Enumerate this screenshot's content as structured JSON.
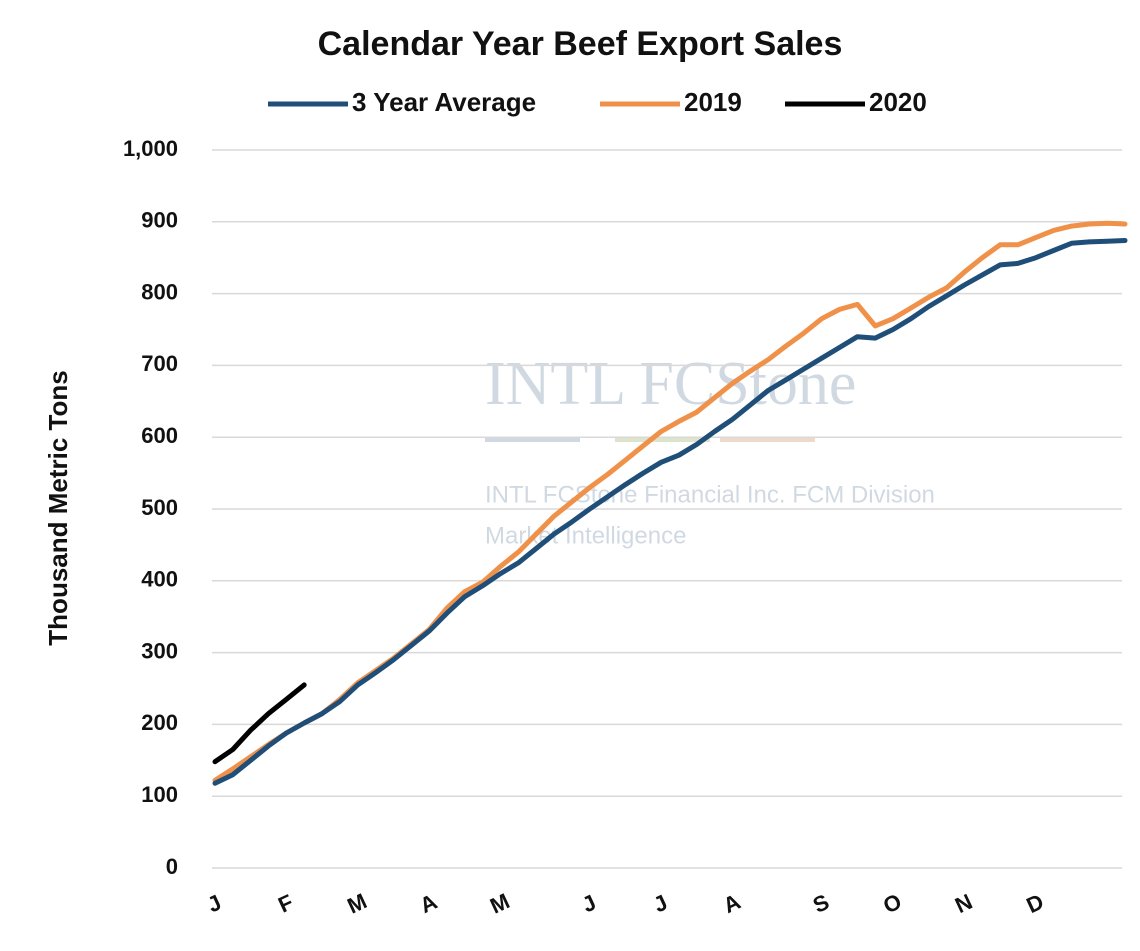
{
  "chart_data": {
    "type": "line",
    "title": "Calendar Year Beef Export Sales",
    "y_label": "Thousand Metric Tons",
    "watermark": [
      "INTL FCStone",
      "INTL FCStone Financial Inc. FCM Division",
      "Market Intelligence"
    ],
    "categories": [
      "J",
      null,
      null,
      null,
      "F",
      null,
      null,
      null,
      "M",
      null,
      null,
      null,
      "A",
      null,
      null,
      null,
      "M",
      null,
      null,
      null,
      null,
      "J",
      null,
      null,
      null,
      "J",
      null,
      null,
      null,
      "A",
      null,
      null,
      null,
      null,
      "S",
      null,
      null,
      null,
      "O",
      null,
      null,
      null,
      "N",
      null,
      null,
      null,
      "D",
      null,
      null,
      null,
      null,
      null
    ],
    "series": [
      {
        "name": "3 Year Average",
        "color": "#1f4e79",
        "values": [
          118,
          130,
          150,
          170,
          188,
          202,
          215,
          232,
          255,
          272,
          290,
          310,
          330,
          355,
          378,
          393,
          410,
          425,
          445,
          465,
          482,
          500,
          517,
          534,
          550,
          565,
          575,
          590,
          608,
          625,
          645,
          665,
          680,
          695,
          710,
          725,
          740,
          738,
          750,
          765,
          782,
          797,
          812,
          826,
          840,
          842,
          850,
          860,
          870,
          872,
          873,
          874
        ]
      },
      {
        "name": "2019",
        "color": "#f0914a",
        "values": [
          122,
          138,
          155,
          172,
          188,
          202,
          215,
          235,
          258,
          275,
          292,
          312,
          332,
          362,
          385,
          398,
          420,
          440,
          465,
          490,
          510,
          530,
          548,
          568,
          588,
          608,
          622,
          635,
          655,
          675,
          692,
          708,
          727,
          745,
          765,
          778,
          785,
          755,
          765,
          780,
          795,
          808,
          830,
          850,
          868,
          868,
          878,
          888,
          894,
          897,
          898,
          897
        ]
      },
      {
        "name": "2020",
        "color": "#000000",
        "values": [
          148,
          165,
          192,
          215,
          235,
          255,
          null,
          null,
          null,
          null,
          null,
          null,
          null,
          null,
          null,
          null,
          null,
          null,
          null,
          null,
          null,
          null,
          null,
          null,
          null,
          null,
          null,
          null,
          null,
          null,
          null,
          null,
          null,
          null,
          null,
          null,
          null,
          null,
          null,
          null,
          null,
          null,
          null,
          null,
          null,
          null,
          null,
          null,
          null,
          null,
          null,
          null
        ]
      }
    ],
    "ylim": [
      0,
      1000
    ],
    "yticks": [
      0,
      100,
      200,
      300,
      400,
      500,
      600,
      700,
      800,
      900,
      {
        "value": 1000,
        "label": "1,000"
      }
    ],
    "grid": true,
    "legend": "top"
  }
}
